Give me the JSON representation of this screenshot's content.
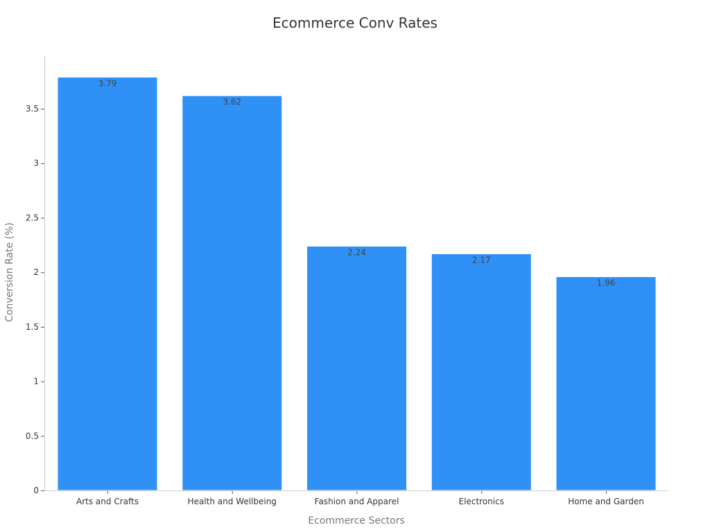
{
  "chart_data": {
    "type": "bar",
    "title": "Ecommerce Conv Rates",
    "xlabel": "Ecommerce Sectors",
    "ylabel": "Conversion Rate (%)",
    "categories": [
      "Arts and Crafts",
      "Health and Wellbeing",
      "Fashion and Apparel",
      "Electronics",
      "Home and Garden"
    ],
    "values": [
      3.79,
      3.62,
      2.24,
      2.17,
      1.96
    ],
    "value_labels": [
      "3.79",
      "3.62",
      "2.24",
      "2.17",
      "1.96"
    ],
    "ylim": [
      0,
      4
    ],
    "yticks": [
      0,
      0.5,
      1,
      1.5,
      2,
      2.5,
      3,
      3.5
    ],
    "ytick_labels": [
      "0",
      "0.5",
      "1",
      "1.5",
      "2",
      "2.5",
      "3",
      "3.5"
    ],
    "grid": false,
    "colors": {
      "bar": "#2f91f6"
    }
  }
}
